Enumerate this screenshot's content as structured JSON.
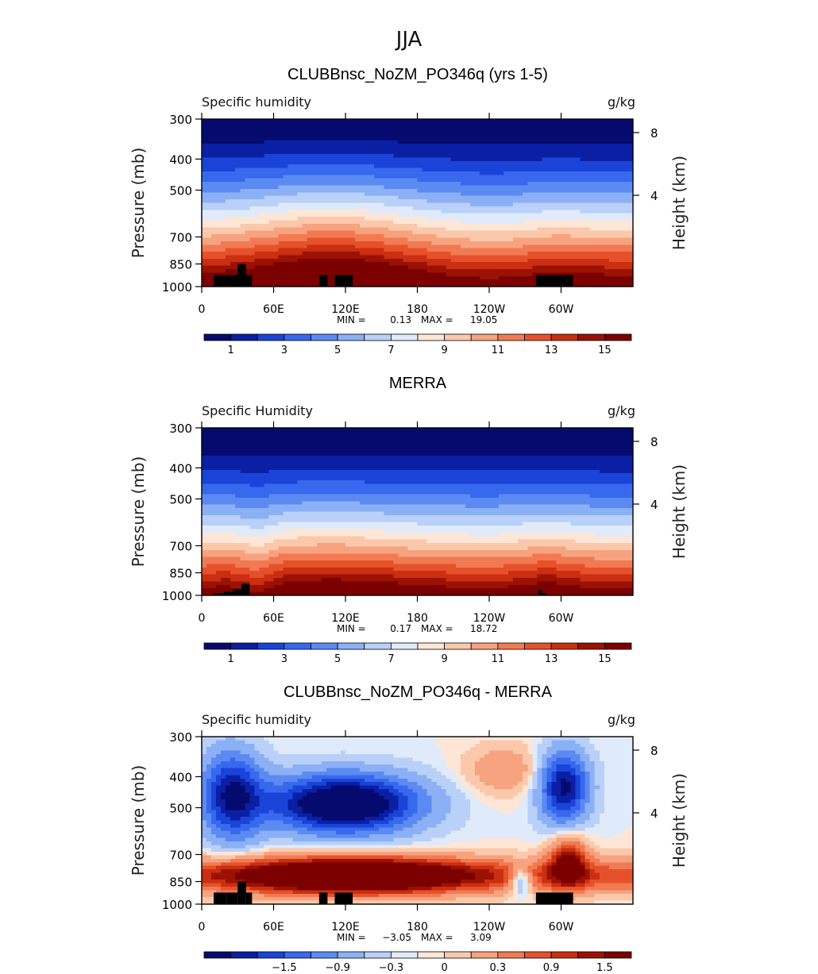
{
  "figure_title": "JJA",
  "chart_data": [
    {
      "type": "heatmap",
      "title": "CLUBBnsc_NoZM_PO346q (yrs 1-5)",
      "left_label": "Specific humidity",
      "units": "g/kg",
      "ylabel": "Pressure (mb)",
      "ylabel_right": "Height (km)",
      "y_ticks": [
        "300",
        "400",
        "500",
        "700",
        "850",
        "1000"
      ],
      "y_tick_values": [
        300,
        400,
        500,
        700,
        850,
        1000
      ],
      "ylim": [
        1000,
        300
      ],
      "right_ticks": [
        "8",
        "4"
      ],
      "right_tick_values": [
        8,
        4
      ],
      "x_ticks": [
        "0",
        "60E",
        "120E",
        "180",
        "120W",
        "60W"
      ],
      "x_tick_values": [
        0,
        60,
        120,
        180,
        240,
        300
      ],
      "xlim": [
        0,
        360
      ],
      "min_label": "MIN =",
      "min_value": "0.13",
      "max_label": "MAX =",
      "max_value": "19.05",
      "colorbar_labels": [
        "1",
        "3",
        "5",
        "7",
        "9",
        "11",
        "13",
        "15"
      ],
      "colorbar_levels": [
        1,
        3,
        5,
        7,
        9,
        11,
        13,
        15
      ],
      "variant": "model"
    },
    {
      "type": "heatmap",
      "title": "MERRA",
      "left_label": "Specific Humidity",
      "units": "g/kg",
      "ylabel": "Pressure (mb)",
      "ylabel_right": "Height (km)",
      "y_ticks": [
        "300",
        "400",
        "500",
        "700",
        "850",
        "1000"
      ],
      "y_tick_values": [
        300,
        400,
        500,
        700,
        850,
        1000
      ],
      "ylim": [
        1000,
        300
      ],
      "right_ticks": [
        "8",
        "4"
      ],
      "right_tick_values": [
        8,
        4
      ],
      "x_ticks": [
        "0",
        "60E",
        "120E",
        "180",
        "120W",
        "60W"
      ],
      "x_tick_values": [
        0,
        60,
        120,
        180,
        240,
        300
      ],
      "xlim": [
        0,
        360
      ],
      "min_label": "MIN =",
      "min_value": "0.17",
      "max_label": "MAX =",
      "max_value": "18.72",
      "colorbar_labels": [
        "1",
        "3",
        "5",
        "7",
        "9",
        "11",
        "13",
        "15"
      ],
      "colorbar_levels": [
        1,
        3,
        5,
        7,
        9,
        11,
        13,
        15
      ],
      "variant": "obs"
    },
    {
      "type": "heatmap",
      "title": "CLUBBnsc_NoZM_PO346q - MERRA",
      "left_label": "Specific humidity",
      "units": "g/kg",
      "ylabel": "Pressure (mb)",
      "ylabel_right": "Height (km)",
      "y_ticks": [
        "300",
        "400",
        "500",
        "700",
        "850",
        "1000"
      ],
      "y_tick_values": [
        300,
        400,
        500,
        700,
        850,
        1000
      ],
      "ylim": [
        1000,
        300
      ],
      "right_ticks": [
        "8",
        "4"
      ],
      "right_tick_values": [
        8,
        4
      ],
      "x_ticks": [
        "0",
        "60E",
        "120E",
        "180",
        "120W",
        "60W"
      ],
      "x_tick_values": [
        0,
        60,
        120,
        180,
        240,
        300
      ],
      "xlim": [
        0,
        360
      ],
      "min_label": "MIN =",
      "min_value": "−3.05",
      "max_label": "MAX =",
      "max_value": "3.09",
      "colorbar_labels": [
        "−1.5",
        "−0.9",
        "−0.3",
        "0",
        "0.3",
        "0.9",
        "1.5"
      ],
      "colorbar_levels": [
        -1.5,
        -0.9,
        -0.3,
        0,
        0.3,
        0.9,
        1.5
      ],
      "variant": "diff"
    }
  ],
  "palette": [
    "#050a6e",
    "#0a1fa3",
    "#1a44d8",
    "#3768ee",
    "#5b8af2",
    "#8cb0f5",
    "#b9d0f8",
    "#dfeafb",
    "#fde6d6",
    "#fbc8ab",
    "#f7a37f",
    "#f27a52",
    "#e6512b",
    "#c92f10",
    "#9b1204",
    "#7d0000"
  ]
}
